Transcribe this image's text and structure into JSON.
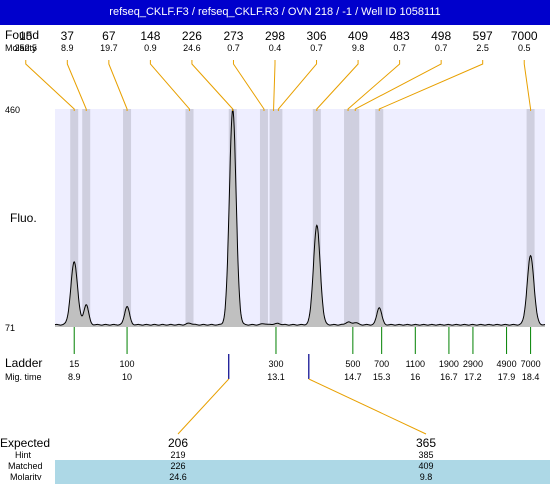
{
  "window": {
    "title": "refseq_CKLF.F3 / refseq_CKLF.R3 / OVN 218 / -1 / Well ID 1058111"
  },
  "chart_data": {
    "type": "line",
    "row_labels": {
      "found": "Found",
      "molarity": "Molarity",
      "fluo": "Fluo.",
      "ladder": "Ladder",
      "mig_time": "Mig. time",
      "expected": "Expected",
      "hint": "Hint",
      "matched": "Matched",
      "molarity_bottom": "Molarity"
    },
    "y_axis": {
      "label": "Fluo.",
      "ticks": [
        "460",
        "71"
      ],
      "range": [
        71,
        460
      ]
    },
    "x_axis": {
      "label": "Mig. time",
      "range": [
        8.5,
        18.7
      ]
    },
    "found_peaks": [
      {
        "size": "15",
        "molarity": "252.5",
        "time": 8.9,
        "height": 187
      },
      {
        "size": "37",
        "molarity": "8.9",
        "time": 9.15,
        "height": 111
      },
      {
        "size": "67",
        "molarity": "19.7",
        "time": 10.0,
        "height": 108
      },
      {
        "size": "148",
        "molarity": "0.9",
        "time": 11.3,
        "height": 78
      },
      {
        "size": "226",
        "molarity": "24.6",
        "time": 12.2,
        "height": 460
      },
      {
        "size": "273",
        "molarity": "0.7",
        "time": 12.85,
        "height": 77
      },
      {
        "size": "298",
        "molarity": "0.4",
        "time": 13.05,
        "height": 76
      },
      {
        "size": "306",
        "molarity": "0.7",
        "time": 13.15,
        "height": 77
      },
      {
        "size": "409",
        "molarity": "9.8",
        "time": 13.95,
        "height": 252
      },
      {
        "size": "483",
        "molarity": "0.7",
        "time": 14.6,
        "height": 80
      },
      {
        "size": "498",
        "molarity": "0.7",
        "time": 14.75,
        "height": 79
      },
      {
        "size": "597",
        "molarity": "2.5",
        "time": 15.25,
        "height": 106
      },
      {
        "size": "7000",
        "molarity": "0.5",
        "time": 18.4,
        "height": 198
      }
    ],
    "ladder": [
      {
        "size": "15",
        "time": "8.9"
      },
      {
        "size": "100",
        "time": "10"
      },
      {
        "size": "300",
        "time": "13.1"
      },
      {
        "size": "500",
        "time": "14.7"
      },
      {
        "size": "700",
        "time": "15.3"
      },
      {
        "size": "1100",
        "time": "16"
      },
      {
        "size": "1900",
        "time": "16.7"
      },
      {
        "size": "2900",
        "time": "17.2"
      },
      {
        "size": "4900",
        "time": "17.9"
      },
      {
        "size": "7000",
        "time": "18.4"
      }
    ],
    "expected": [
      {
        "size": "206",
        "hint": "219",
        "matched": "226",
        "molarity": "24.6",
        "time": 12.2
      },
      {
        "size": "365",
        "hint": "385",
        "matched": "409",
        "molarity": "9.8",
        "time": 13.95
      }
    ],
    "colors": {
      "title_bar": "#0000cc",
      "plot_background": "#eeeeff",
      "peak_band": "#cfcfdf",
      "trace_fill": "#c0c0c0",
      "trace_line": "#000000",
      "found_leader": "#e8a000",
      "ladder_tick": "#008000",
      "expected_marker": "#00008b",
      "matched_highlight": "#add8e6"
    }
  }
}
